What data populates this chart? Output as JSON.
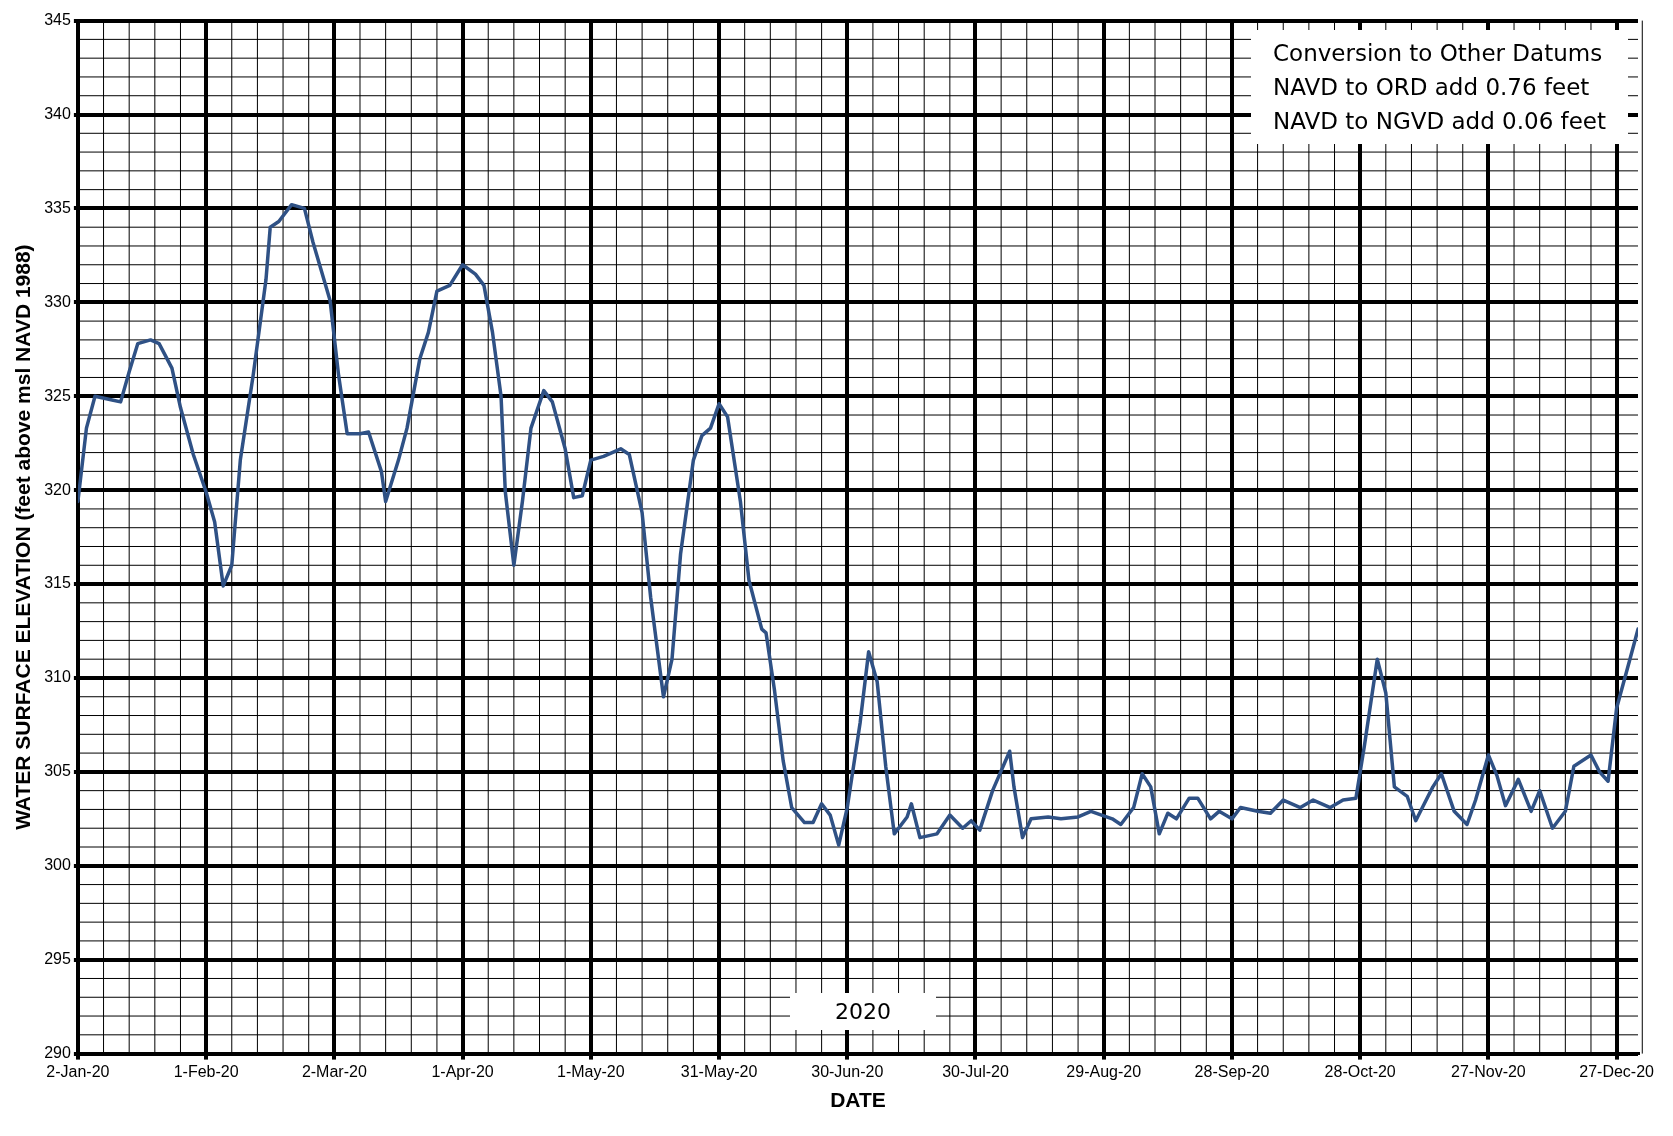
{
  "chart_data": {
    "type": "line",
    "xlabel": "DATE",
    "ylabel": "WATER SURFACE ELEVATION (feet above msl NAVD 1988)",
    "annotations": [
      "Conversion to Other Datums\nNAVD to ORD add 0.76 feet\nNAVD to NGVD add 0.06 feet",
      "2020"
    ],
    "xlim": [
      "2020-01-02",
      "2021-01-01"
    ],
    "xticks": [
      {
        "value": "2020-01-02",
        "label": "2-Jan-20"
      },
      {
        "value": "2020-02-01",
        "label": "1-Feb-20"
      },
      {
        "value": "2020-03-02",
        "label": "2-Mar-20"
      },
      {
        "value": "2020-04-01",
        "label": "1-Apr-20"
      },
      {
        "value": "2020-05-01",
        "label": "1-May-20"
      },
      {
        "value": "2020-05-31",
        "label": "31-May-20"
      },
      {
        "value": "2020-06-30",
        "label": "30-Jun-20"
      },
      {
        "value": "2020-07-30",
        "label": "30-Jul-20"
      },
      {
        "value": "2020-08-29",
        "label": "29-Aug-20"
      },
      {
        "value": "2020-09-28",
        "label": "28-Sep-20"
      },
      {
        "value": "2020-10-28",
        "label": "28-Oct-20"
      },
      {
        "value": "2020-11-27",
        "label": "27-Nov-20"
      },
      {
        "value": "2020-12-27",
        "label": "27-Dec-20"
      }
    ],
    "ylim": [
      290,
      345
    ],
    "yticks": [
      290,
      295,
      300,
      305,
      310,
      315,
      320,
      325,
      330,
      335,
      340,
      345
    ],
    "grid": true,
    "legend": false,
    "marker": "none",
    "line_style": "solid",
    "x": [
      "2020-01-02",
      "2020-01-04",
      "2020-01-06",
      "2020-01-10",
      "2020-01-12",
      "2020-01-14",
      "2020-01-16",
      "2020-01-19",
      "2020-01-21",
      "2020-01-24",
      "2020-01-26",
      "2020-01-29",
      "2020-02-01",
      "2020-02-03",
      "2020-02-05",
      "2020-02-07",
      "2020-02-09",
      "2020-02-12",
      "2020-02-15",
      "2020-02-16",
      "2020-02-18",
      "2020-02-21",
      "2020-02-24",
      "2020-02-26",
      "2020-03-01",
      "2020-03-03",
      "2020-03-05",
      "2020-03-08",
      "2020-03-10",
      "2020-03-13",
      "2020-03-14",
      "2020-03-17",
      "2020-03-19",
      "2020-03-22",
      "2020-03-24",
      "2020-03-26",
      "2020-03-29",
      "2020-04-01",
      "2020-04-04",
      "2020-04-06",
      "2020-04-08",
      "2020-04-10",
      "2020-04-11",
      "2020-04-13",
      "2020-04-15",
      "2020-04-17",
      "2020-04-20",
      "2020-04-22",
      "2020-04-25",
      "2020-04-27",
      "2020-04-29",
      "2020-05-01",
      "2020-05-04",
      "2020-05-08",
      "2020-05-10",
      "2020-05-13",
      "2020-05-15",
      "2020-05-18",
      "2020-05-20",
      "2020-05-22",
      "2020-05-25",
      "2020-05-27",
      "2020-05-29",
      "2020-05-31",
      "2020-06-02",
      "2020-06-05",
      "2020-06-07",
      "2020-06-10",
      "2020-06-11",
      "2020-06-13",
      "2020-06-15",
      "2020-06-17",
      "2020-06-20",
      "2020-06-22",
      "2020-06-24",
      "2020-06-26",
      "2020-06-28",
      "2020-06-30",
      "2020-07-03",
      "2020-07-05",
      "2020-07-07",
      "2020-07-09",
      "2020-07-11",
      "2020-07-14",
      "2020-07-15",
      "2020-07-17",
      "2020-07-21",
      "2020-07-24",
      "2020-07-27",
      "2020-07-29",
      "2020-07-31",
      "2020-08-03",
      "2020-08-07",
      "2020-08-08",
      "2020-08-10",
      "2020-08-12",
      "2020-08-16",
      "2020-08-19",
      "2020-08-23",
      "2020-08-26",
      "2020-08-31",
      "2020-09-02",
      "2020-09-05",
      "2020-09-07",
      "2020-09-09",
      "2020-09-11",
      "2020-09-13",
      "2020-09-15",
      "2020-09-18",
      "2020-09-20",
      "2020-09-23",
      "2020-09-25",
      "2020-09-28",
      "2020-09-30",
      "2020-10-04",
      "2020-10-07",
      "2020-10-10",
      "2020-10-14",
      "2020-10-17",
      "2020-10-21",
      "2020-10-24",
      "2020-10-27",
      "2020-10-29",
      "2020-11-01",
      "2020-11-03",
      "2020-11-05",
      "2020-11-08",
      "2020-11-10",
      "2020-11-12",
      "2020-11-14",
      "2020-11-16",
      "2020-11-19",
      "2020-11-22",
      "2020-11-24",
      "2020-11-27",
      "2020-11-29",
      "2020-12-01",
      "2020-12-04",
      "2020-12-07",
      "2020-12-09",
      "2020-12-12",
      "2020-12-15",
      "2020-12-17",
      "2020-12-21",
      "2020-12-23",
      "2020-12-25",
      "2020-12-27",
      "2020-12-30",
      "2021-01-01"
    ],
    "series": [
      {
        "color": "#2f5185",
        "values": [
          319.4,
          323.3,
          325,
          324.8,
          324.7,
          326.3,
          327.8,
          328,
          327.8,
          326.5,
          324.4,
          321.9,
          319.9,
          318.3,
          314.9,
          316,
          321.6,
          326.1,
          331.2,
          334,
          334.3,
          335.2,
          335,
          333.2,
          330.1,
          326.1,
          323,
          323,
          323.1,
          321,
          319.4,
          321.6,
          323.3,
          327,
          328.4,
          330.6,
          330.9,
          332,
          331.5,
          330.9,
          328.4,
          325,
          319.9,
          316,
          319.4,
          323.3,
          325.3,
          324.7,
          322.2,
          319.6,
          319.7,
          321.6,
          321.8,
          322.2,
          321.9,
          318.8,
          314.3,
          309,
          311,
          316.6,
          321.6,
          322.9,
          323.3,
          324.6,
          323.9,
          319.4,
          315.2,
          312.6,
          312.4,
          309.3,
          305.6,
          303.1,
          302.3,
          302.3,
          303.3,
          302.7,
          301.1,
          303.1,
          307.6,
          311.4,
          309.8,
          305.3,
          301.7,
          302.6,
          303.3,
          301.5,
          301.7,
          302.7,
          302,
          302.4,
          301.9,
          304,
          306.1,
          304.2,
          301.5,
          302.5,
          302.6,
          302.5,
          302.6,
          302.9,
          302.5,
          302.2,
          303.1,
          304.9,
          304.2,
          301.7,
          302.8,
          302.5,
          303.6,
          303.6,
          302.5,
          302.9,
          302.5,
          303.1,
          302.9,
          302.8,
          303.5,
          303.1,
          303.5,
          303.1,
          303.5,
          303.6,
          306.4,
          311,
          309.2,
          304.2,
          303.7,
          302.4,
          303.3,
          304.2,
          304.9,
          302.9,
          302.2,
          303.5,
          305.9,
          304.8,
          303.2,
          304.6,
          302.9,
          304,
          302,
          302.9,
          305.3,
          305.9,
          305,
          304.5,
          308.4,
          310.9,
          312.6
        ]
      }
    ]
  }
}
